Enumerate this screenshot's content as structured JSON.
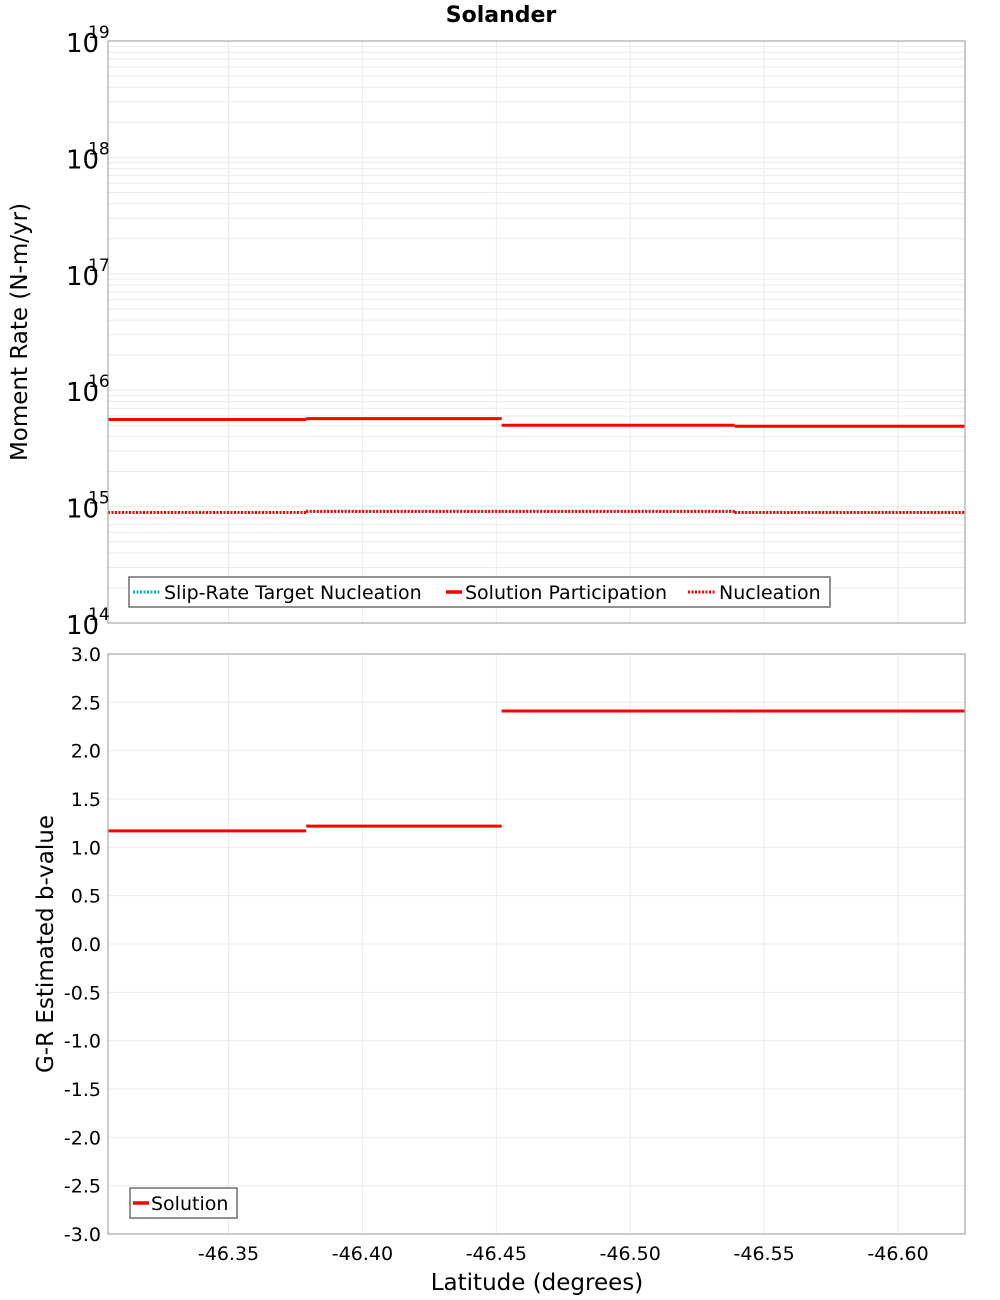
{
  "title": "Solander",
  "colors": {
    "solution": "#ff0000",
    "target": "#00b3b3",
    "nucleation": "#ff0000",
    "grid": "#ebebeb",
    "frame": "#a8a8a8"
  },
  "chart_data": [
    {
      "type": "line",
      "subtype": "step",
      "title": "Solander",
      "xlabel": "Latitude (degrees)",
      "ylabel": "Moment Rate (N-m/yr)",
      "yscale": "log",
      "ylim": [
        100000000000000.0,
        1e+19
      ],
      "xlim": [
        -46.305,
        -46.625
      ],
      "x_reversed": true,
      "ytick_exponents": [
        "19",
        "18",
        "17",
        "16",
        "15",
        "14"
      ],
      "grid": true,
      "legend_position": "lower-left",
      "legend": [
        "Slip-Rate Target Nucleation",
        "Solution Participation",
        "Nucleation"
      ],
      "segments_x": [
        [
          -46.305,
          -46.379
        ],
        [
          -46.379,
          -46.452
        ],
        [
          -46.452,
          -46.539
        ],
        [
          -46.539,
          -46.625
        ]
      ],
      "series": [
        {
          "name": "Slip-Rate Target Nucleation",
          "style": "dotted",
          "color": "#00b3b3",
          "values": [
            890000000000000.0,
            910000000000000.0,
            910000000000000.0,
            890000000000000.0
          ]
        },
        {
          "name": "Solution Participation",
          "style": "solid",
          "color": "#ff0000",
          "values": [
            5600000000000000.0,
            5700000000000000.0,
            5000000000000000.0,
            4900000000000000.0
          ]
        },
        {
          "name": "Nucleation",
          "style": "dotted",
          "color": "#ff0000",
          "values": [
            890000000000000.0,
            910000000000000.0,
            910000000000000.0,
            890000000000000.0
          ]
        }
      ]
    },
    {
      "type": "line",
      "subtype": "step",
      "xlabel": "Latitude (degrees)",
      "ylabel": "G-R Estimated b-value",
      "ylim": [
        -3.0,
        3.0
      ],
      "xlim": [
        -46.305,
        -46.625
      ],
      "x_reversed": true,
      "yticks": [
        "3.0",
        "2.5",
        "2.0",
        "1.5",
        "1.0",
        "0.5",
        "0.0",
        "-0.5",
        "-1.0",
        "-1.5",
        "-2.0",
        "-2.5",
        "-3.0"
      ],
      "xticks": [
        "-46.35",
        "-46.40",
        "-46.45",
        "-46.50",
        "-46.55",
        "-46.60"
      ],
      "grid": true,
      "legend_position": "lower-left",
      "legend": [
        "Solution"
      ],
      "segments_x": [
        [
          -46.305,
          -46.379
        ],
        [
          -46.379,
          -46.452
        ],
        [
          -46.452,
          -46.539
        ],
        [
          -46.539,
          -46.625
        ]
      ],
      "series": [
        {
          "name": "Solution",
          "style": "solid",
          "color": "#ff0000",
          "values": [
            1.17,
            1.22,
            2.41,
            2.41
          ]
        }
      ]
    }
  ],
  "top": {
    "ylabel": "Moment Rate (N-m/yr)",
    "ytick_base": "10",
    "legend": {
      "target": "Slip-Rate Target Nucleation",
      "solution": "Solution Participation",
      "nucleation": "Nucleation"
    }
  },
  "bottom": {
    "ylabel": "G-R Estimated b-value",
    "xlabel": "Latitude (degrees)",
    "legend": {
      "solution": "Solution"
    }
  }
}
